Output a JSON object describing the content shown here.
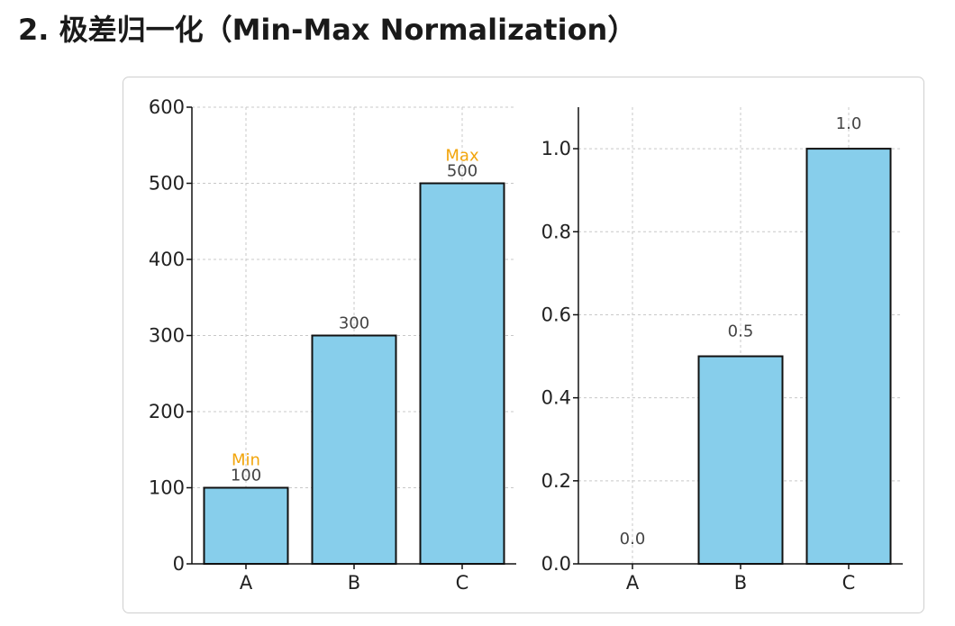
{
  "heading": "2. 极差归一化（Min-Max Normalization）",
  "chart_data": [
    {
      "type": "bar",
      "categories": [
        "A",
        "B",
        "C"
      ],
      "values": [
        100,
        300,
        500
      ],
      "value_labels": [
        "100",
        "300",
        "500"
      ],
      "annotations": [
        {
          "category": "A",
          "text": "Min",
          "color": "#f2a50c"
        },
        {
          "category": "C",
          "text": "Max",
          "color": "#f2a50c"
        }
      ],
      "ylim": [
        0,
        600
      ],
      "yticks": [
        0,
        100,
        200,
        300,
        400,
        500,
        600
      ],
      "ytick_labels": [
        "0",
        "100",
        "200",
        "300",
        "400",
        "500",
        "600"
      ],
      "bar_color": "#87ceeb",
      "edge_color": "#111111",
      "grid": true
    },
    {
      "type": "bar",
      "categories": [
        "A",
        "B",
        "C"
      ],
      "values": [
        0.0,
        0.5,
        1.0
      ],
      "value_labels": [
        "0.0",
        "0.5",
        "1.0"
      ],
      "ylim": [
        0,
        1.1
      ],
      "yticks": [
        0.0,
        0.2,
        0.4,
        0.6,
        0.8,
        1.0
      ],
      "ytick_labels": [
        "0.0",
        "0.2",
        "0.4",
        "0.6",
        "0.8",
        "1.0"
      ],
      "bar_color": "#87ceeb",
      "edge_color": "#111111",
      "grid": true
    }
  ]
}
